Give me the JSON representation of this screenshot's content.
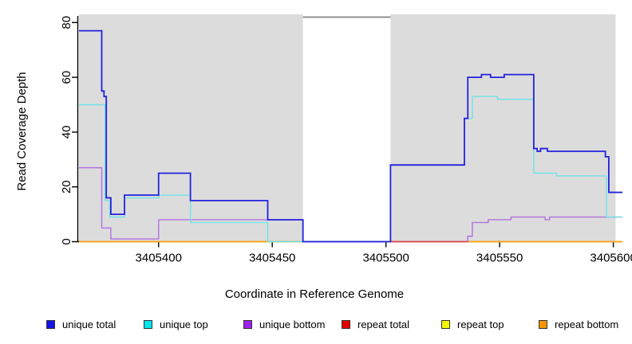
{
  "figure": {
    "background": "#ffffff",
    "panel_color": "#dcdcdc",
    "mask_border_color": "#8f8f8f",
    "axis_color": "#000000"
  },
  "chart_data": {
    "type": "line",
    "subtype": "step-coverage-plot",
    "title": "",
    "xlabel": "Coordinate in Reference Genome",
    "ylabel": "Read Coverage Depth",
    "xlim": [
      3405365,
      3405604
    ],
    "ylim": [
      0,
      80
    ],
    "grid": false,
    "x_ticks": [
      3405400,
      3405450,
      3405500,
      3405550,
      3405600
    ],
    "x_tick_labels": [
      "3405400",
      "3405450",
      "3405500",
      "3405550",
      "3405600"
    ],
    "y_ticks": [
      0,
      20,
      40,
      60,
      80
    ],
    "y_tick_labels": [
      "0",
      "20",
      "40",
      "60",
      "80"
    ],
    "background_blocks": [
      {
        "start": 3405365,
        "end": 3405463.5
      },
      {
        "start": 3405502,
        "end": 3405601
      }
    ],
    "masked_region": {
      "start": 3405463.5,
      "end": 3405502
    },
    "legend_position": "bottom",
    "series": [
      {
        "name": "unique total",
        "color": "#2222dd",
        "line_width": 1.8,
        "points": [
          [
            3405365,
            77
          ],
          [
            3405375,
            55
          ],
          [
            3405376,
            53
          ],
          [
            3405377,
            16
          ],
          [
            3405379,
            10
          ],
          [
            3405385,
            17
          ],
          [
            3405400,
            25
          ],
          [
            3405414,
            15
          ],
          [
            3405448,
            8
          ],
          [
            3405463.5,
            0
          ],
          [
            3405502,
            28
          ],
          [
            3405534.5,
            45
          ],
          [
            3405536,
            60
          ],
          [
            3405542,
            61
          ],
          [
            3405546,
            60
          ],
          [
            3405552,
            61
          ],
          [
            3405565,
            34
          ],
          [
            3405566.5,
            33
          ],
          [
            3405568,
            34
          ],
          [
            3405571,
            33
          ],
          [
            3405596.5,
            31
          ],
          [
            3405598,
            18
          ],
          [
            3405604,
            18
          ]
        ]
      },
      {
        "name": "unique top",
        "color": "#70e2e8",
        "line_width": 1.4,
        "points": [
          [
            3405365,
            50
          ],
          [
            3405376.5,
            15
          ],
          [
            3405378.5,
            9
          ],
          [
            3405385,
            16
          ],
          [
            3405400,
            17
          ],
          [
            3405414,
            7
          ],
          [
            3405448,
            0
          ],
          [
            3405502,
            28
          ],
          [
            3405534.5,
            45
          ],
          [
            3405538,
            53
          ],
          [
            3405549,
            52
          ],
          [
            3405565,
            25
          ],
          [
            3405575,
            24
          ],
          [
            3405597,
            9
          ],
          [
            3405604,
            9
          ]
        ]
      },
      {
        "name": "unique bottom",
        "color": "#b272e0",
        "line_width": 1.4,
        "points": [
          [
            3405365,
            27
          ],
          [
            3405375,
            5
          ],
          [
            3405379,
            1
          ],
          [
            3405400,
            8
          ],
          [
            3405463.5,
            0
          ],
          [
            3405536,
            2
          ],
          [
            3405538,
            7
          ],
          [
            3405545,
            8
          ],
          [
            3405555,
            9
          ],
          [
            3405570,
            8
          ],
          [
            3405572,
            9
          ],
          [
            3405604,
            9
          ]
        ]
      },
      {
        "name": "repeat total",
        "color": "#e04050",
        "line_width": 1.6,
        "points": [
          [
            3405365,
            0
          ],
          [
            3405604,
            0
          ]
        ],
        "visible_segment": [
          3405502,
          3405536
        ]
      },
      {
        "name": "repeat top",
        "color": "#f2f20a",
        "line_width": 1.4,
        "points": [
          [
            3405365,
            0
          ],
          [
            3405604,
            0
          ]
        ]
      },
      {
        "name": "repeat bottom",
        "color": "#ffa51e",
        "line_width": 1.8,
        "points": [
          [
            3405365,
            0
          ],
          [
            3405604,
            0
          ]
        ]
      }
    ],
    "legend": [
      {
        "label": "unique total",
        "color": "#1414e6"
      },
      {
        "label": "unique top",
        "color": "#00e5ee"
      },
      {
        "label": "unique bottom",
        "color": "#a020f0"
      },
      {
        "label": "repeat total",
        "color": "#e60000"
      },
      {
        "label": "repeat top",
        "color": "#f5f500"
      },
      {
        "label": "repeat bottom",
        "color": "#f59400"
      }
    ]
  }
}
